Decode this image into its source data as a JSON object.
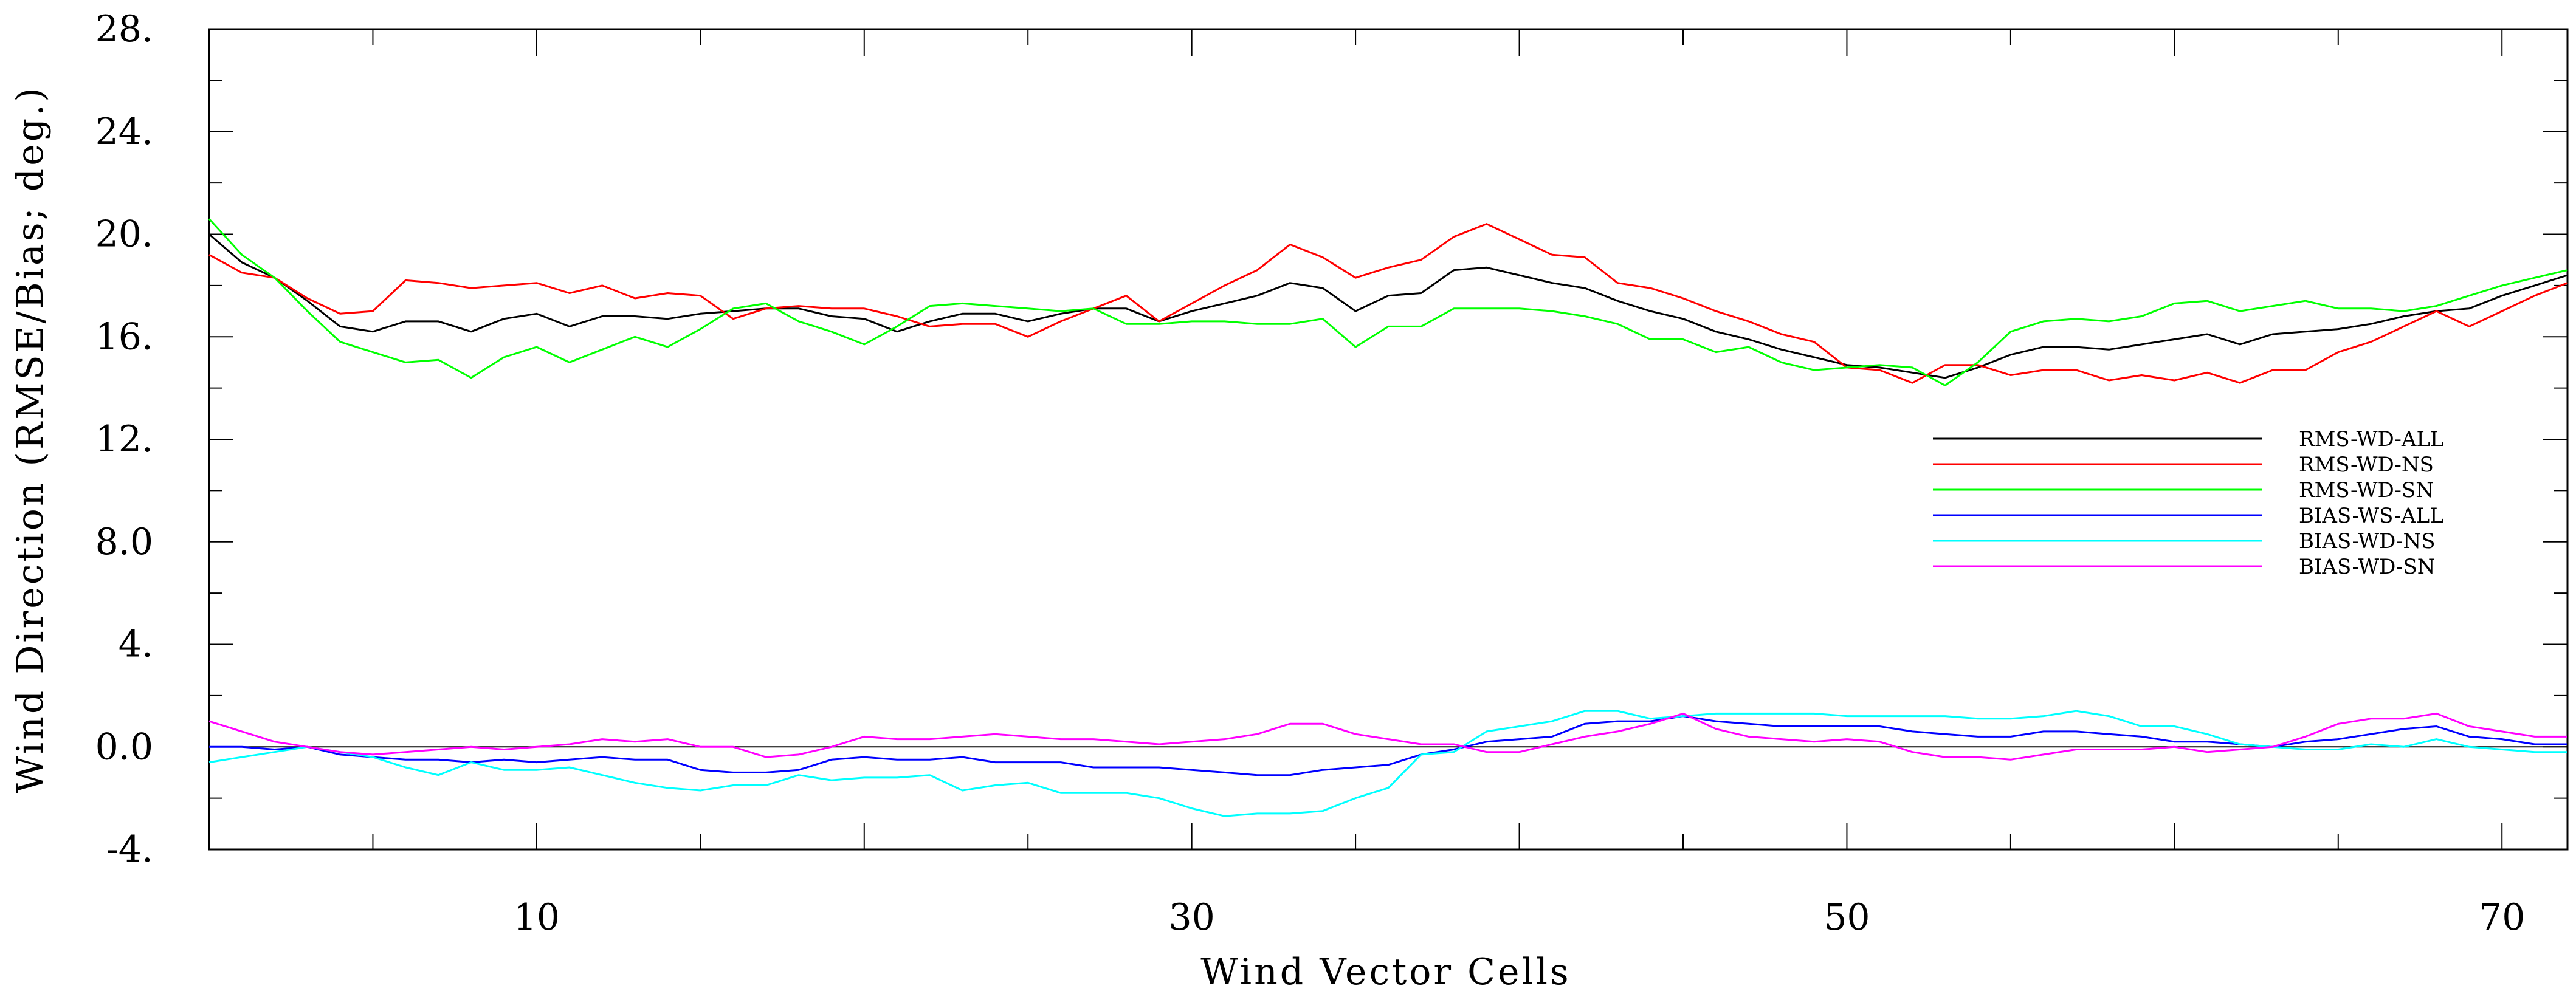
{
  "chart_data": {
    "type": "line",
    "xlabel": "Wind Vector Cells",
    "ylabel": "Wind Direction (RMSE/Bias; deg.)",
    "xlim": [
      0,
      72
    ],
    "ylim": [
      -4,
      28
    ],
    "xticks": [
      10,
      30,
      50,
      70
    ],
    "yticks": [
      -4,
      0,
      4,
      8,
      12,
      16,
      20,
      24,
      28
    ],
    "ytick_labels": [
      "-4.",
      "0.0",
      "4.",
      "8.0",
      "12.",
      "16.",
      "20.",
      "24.",
      "28."
    ],
    "grid": false,
    "legend_position": "right",
    "x": [
      0,
      1,
      2,
      3,
      4,
      5,
      6,
      7,
      8,
      9,
      10,
      11,
      12,
      13,
      14,
      15,
      16,
      17,
      18,
      19,
      20,
      21,
      22,
      23,
      24,
      25,
      26,
      27,
      28,
      29,
      30,
      31,
      32,
      33,
      34,
      35,
      36,
      37,
      38,
      39,
      40,
      41,
      42,
      43,
      44,
      45,
      46,
      47,
      48,
      49,
      50,
      51,
      52,
      53,
      54,
      55,
      56,
      57,
      58,
      59,
      60,
      61,
      62,
      63,
      64,
      65,
      66,
      67,
      68,
      69,
      70,
      71,
      72
    ],
    "series": [
      {
        "name": "RMS-WD-ALL",
        "color": "#000000",
        "values": [
          20.0,
          18.9,
          18.3,
          17.4,
          16.4,
          16.2,
          16.6,
          16.6,
          16.2,
          16.7,
          16.9,
          16.4,
          16.8,
          16.8,
          16.7,
          16.9,
          17.0,
          17.1,
          17.1,
          16.8,
          16.7,
          16.2,
          16.6,
          16.9,
          16.9,
          16.6,
          16.9,
          17.1,
          17.1,
          16.6,
          17.0,
          17.3,
          17.6,
          18.1,
          17.9,
          17.0,
          17.6,
          17.7,
          18.6,
          18.7,
          18.4,
          18.1,
          17.9,
          17.4,
          17.0,
          16.7,
          16.2,
          15.9,
          15.5,
          15.2,
          14.9,
          14.8,
          14.6,
          14.4,
          14.8,
          15.3,
          15.6,
          15.6,
          15.5,
          15.7,
          15.9,
          16.1,
          15.7,
          16.1,
          16.2,
          16.3,
          16.5,
          16.8,
          17.0,
          17.1,
          17.6,
          18.0,
          18.4
        ]
      },
      {
        "name": "RMS-WD-NS",
        "color": "#ff0000",
        "values": [
          19.2,
          18.5,
          18.3,
          17.5,
          16.9,
          17.0,
          18.2,
          18.1,
          17.9,
          18.0,
          18.1,
          17.7,
          18.0,
          17.5,
          17.7,
          17.6,
          16.7,
          17.1,
          17.2,
          17.1,
          17.1,
          16.8,
          16.4,
          16.5,
          16.5,
          16.0,
          16.6,
          17.1,
          17.6,
          16.6,
          17.3,
          18.0,
          18.6,
          19.6,
          19.1,
          18.3,
          18.7,
          19.0,
          19.9,
          20.4,
          19.8,
          19.2,
          19.1,
          18.1,
          17.9,
          17.5,
          17.0,
          16.6,
          16.1,
          15.8,
          14.8,
          14.7,
          14.2,
          14.9,
          14.9,
          14.5,
          14.7,
          14.7,
          14.3,
          14.5,
          14.3,
          14.6,
          14.2,
          14.7,
          14.7,
          15.4,
          15.8,
          16.4,
          17.0,
          16.4,
          17.0,
          17.6,
          18.1
        ]
      },
      {
        "name": "RMS-WD-SN",
        "color": "#00ff00",
        "values": [
          20.6,
          19.2,
          18.3,
          17.0,
          15.8,
          15.4,
          15.0,
          15.1,
          14.4,
          15.2,
          15.6,
          15.0,
          15.5,
          16.0,
          15.6,
          16.3,
          17.1,
          17.3,
          16.6,
          16.2,
          15.7,
          16.4,
          17.2,
          17.3,
          17.2,
          17.1,
          17.0,
          17.1,
          16.5,
          16.5,
          16.6,
          16.6,
          16.5,
          16.5,
          16.7,
          15.6,
          16.4,
          16.4,
          17.1,
          17.1,
          17.1,
          17.0,
          16.8,
          16.5,
          15.9,
          15.9,
          15.4,
          15.6,
          15.0,
          14.7,
          14.8,
          14.9,
          14.8,
          14.1,
          15.0,
          16.2,
          16.6,
          16.7,
          16.6,
          16.8,
          17.3,
          17.4,
          17.0,
          17.2,
          17.4,
          17.1,
          17.1,
          17.0,
          17.2,
          17.6,
          18.0,
          18.3,
          18.6
        ]
      },
      {
        "name": "BIAS-WS-ALL",
        "color": "#0000ff",
        "values": [
          0.0,
          0.0,
          -0.1,
          0.0,
          -0.3,
          -0.4,
          -0.5,
          -0.5,
          -0.6,
          -0.5,
          -0.6,
          -0.5,
          -0.4,
          -0.5,
          -0.5,
          -0.9,
          -1.0,
          -1.0,
          -0.9,
          -0.5,
          -0.4,
          -0.5,
          -0.5,
          -0.4,
          -0.6,
          -0.6,
          -0.6,
          -0.8,
          -0.8,
          -0.8,
          -0.9,
          -1.0,
          -1.1,
          -1.1,
          -0.9,
          -0.8,
          -0.7,
          -0.3,
          -0.1,
          0.2,
          0.3,
          0.4,
          0.9,
          1.0,
          1.0,
          1.2,
          1.0,
          0.9,
          0.8,
          0.8,
          0.8,
          0.8,
          0.6,
          0.5,
          0.4,
          0.4,
          0.6,
          0.6,
          0.5,
          0.4,
          0.2,
          0.2,
          0.1,
          0.0,
          0.2,
          0.3,
          0.5,
          0.7,
          0.8,
          0.4,
          0.3,
          0.1,
          0.1
        ]
      },
      {
        "name": "BIAS-WD-NS",
        "color": "#00ffff",
        "values": [
          -0.6,
          -0.4,
          -0.2,
          0.0,
          -0.2,
          -0.4,
          -0.8,
          -1.1,
          -0.6,
          -0.9,
          -0.9,
          -0.8,
          -1.1,
          -1.4,
          -1.6,
          -1.7,
          -1.5,
          -1.5,
          -1.1,
          -1.3,
          -1.2,
          -1.2,
          -1.1,
          -1.7,
          -1.5,
          -1.4,
          -1.8,
          -1.8,
          -1.8,
          -2.0,
          -2.4,
          -2.7,
          -2.6,
          -2.6,
          -2.5,
          -2.0,
          -1.6,
          -0.3,
          -0.2,
          0.6,
          0.8,
          1.0,
          1.4,
          1.4,
          1.1,
          1.2,
          1.3,
          1.3,
          1.3,
          1.3,
          1.2,
          1.2,
          1.2,
          1.2,
          1.1,
          1.1,
          1.2,
          1.4,
          1.2,
          0.8,
          0.8,
          0.5,
          0.1,
          0.0,
          -0.1,
          -0.1,
          0.1,
          0.0,
          0.3,
          0.0,
          -0.1,
          -0.2,
          -0.2
        ]
      },
      {
        "name": "BIAS-WD-SN",
        "color": "#ff00ff",
        "values": [
          1.0,
          0.6,
          0.2,
          0.0,
          -0.2,
          -0.3,
          -0.2,
          -0.1,
          0.0,
          -0.1,
          0.0,
          0.1,
          0.3,
          0.2,
          0.3,
          0.0,
          0.0,
          -0.4,
          -0.3,
          0.0,
          0.4,
          0.3,
          0.3,
          0.4,
          0.5,
          0.4,
          0.3,
          0.3,
          0.2,
          0.1,
          0.2,
          0.3,
          0.5,
          0.9,
          0.9,
          0.5,
          0.3,
          0.1,
          0.1,
          -0.2,
          -0.2,
          0.1,
          0.4,
          0.6,
          0.9,
          1.3,
          0.7,
          0.4,
          0.3,
          0.2,
          0.3,
          0.2,
          -0.2,
          -0.4,
          -0.4,
          -0.5,
          -0.3,
          -0.1,
          -0.1,
          -0.1,
          0.0,
          -0.2,
          -0.1,
          0.0,
          0.4,
          0.9,
          1.1,
          1.1,
          1.3,
          0.8,
          0.6,
          0.4,
          0.4
        ]
      }
    ]
  }
}
